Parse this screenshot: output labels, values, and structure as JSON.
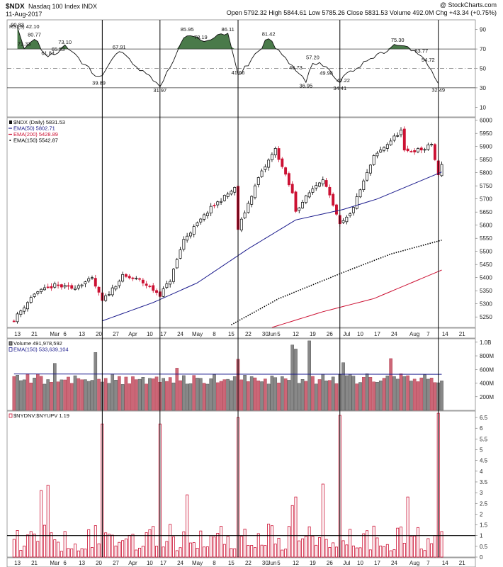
{
  "header": {
    "symbol": "$NDX",
    "name": "Nasdaq 100 Index INDX",
    "date": "11-Aug-2017",
    "ohlc": "Open 5792.32 High 5844.61 Low 5785.26 Close 5831.53 Volume 492.0M Chg +43.34 (+0.75%)",
    "watermark": "@ StockCharts.com"
  },
  "colors": {
    "up": "#000000",
    "down": "#cc1133",
    "ema50": "#1a1a8c",
    "ema200": "#cc1133",
    "ema150": "#000000",
    "rsi_fill": "#4a7a4a",
    "vol_down": "#cc6677",
    "vol_up": "#888888"
  },
  "chart_data": [
    {
      "type": "line",
      "title": "RSI(9) 42.10",
      "legend": "RSI(9) 42.10",
      "ylim": [
        0,
        100
      ],
      "yticks": [
        10,
        30,
        50,
        70,
        90
      ],
      "reference_lines": [
        30,
        50,
        70
      ],
      "annotations": [
        {
          "date": "2017-02-13",
          "value": 90.83,
          "label": "90.83"
        },
        {
          "date": "2017-02-21",
          "value": 80.77,
          "label": "80.77"
        },
        {
          "date": "2017-02-15",
          "value": 71.33,
          "label": "71.33"
        },
        {
          "date": "2017-02-27",
          "value": 61.84,
          "label": "61.84"
        },
        {
          "date": "2017-03-02",
          "value": 65.53,
          "label": "65.53"
        },
        {
          "date": "2017-03-06",
          "value": 73.1,
          "label": "73.10"
        },
        {
          "date": "2017-03-20",
          "value": 39.89,
          "label": "39.89"
        },
        {
          "date": "2017-03-28",
          "value": 67.91,
          "label": "67.91"
        },
        {
          "date": "2017-04-13",
          "value": 31.97,
          "label": "31.97"
        },
        {
          "date": "2017-04-26",
          "value": 85.95,
          "label": "85.95"
        },
        {
          "date": "2017-05-02",
          "value": 78.19,
          "label": "78.19"
        },
        {
          "date": "2017-05-12",
          "value": 86.11,
          "label": "86.11"
        },
        {
          "date": "2017-05-17",
          "value": 41.66,
          "label": "41.66"
        },
        {
          "date": "2017-05-31",
          "value": 81.42,
          "label": "81.42"
        },
        {
          "date": "2017-06-12",
          "value": 46.73,
          "label": "46.73"
        },
        {
          "date": "2017-06-15",
          "value": 36.95,
          "label": "36.95"
        },
        {
          "date": "2017-06-19",
          "value": 57.2,
          "label": "57.20"
        },
        {
          "date": "2017-06-23",
          "value": 49.98,
          "label": "49.98"
        },
        {
          "date": "2017-06-29",
          "value": 34.41,
          "label": "34.41"
        },
        {
          "date": "2017-06-30",
          "value": 42.22,
          "label": "42.22"
        },
        {
          "date": "2017-07-25",
          "value": 75.3,
          "label": "75.30"
        },
        {
          "date": "2017-08-03",
          "value": 63.77,
          "label": "63.77"
        },
        {
          "date": "2017-08-07",
          "value": 54.72,
          "label": "54.72"
        },
        {
          "date": "2017-08-10",
          "value": 32.49,
          "label": "32.49"
        }
      ]
    },
    {
      "type": "candlestick",
      "title": "$NDX (Daily) 5831.53",
      "legend": [
        {
          "name": "$NDX (Daily) 5831.53",
          "color": "#111111"
        },
        {
          "name": "EMA(50) 5802.71",
          "color": "#1a1a8c"
        },
        {
          "name": "EMA(200) 5428.89",
          "color": "#cc1133"
        },
        {
          "name": "EMA(150) 5542.87",
          "color": "#000000"
        }
      ],
      "ylim": [
        5210,
        6010
      ],
      "yticks": [
        5250,
        5300,
        5350,
        5400,
        5450,
        5500,
        5550,
        5600,
        5650,
        5700,
        5750,
        5800,
        5850,
        5900,
        5950,
        6000
      ],
      "anchors": [
        {
          "date": "2017-02-10",
          "close": 5240
        },
        {
          "date": "2017-02-21",
          "close": 5340
        },
        {
          "date": "2017-03-01",
          "close": 5370
        },
        {
          "date": "2017-03-08",
          "close": 5360
        },
        {
          "date": "2017-03-16",
          "close": 5395
        },
        {
          "date": "2017-03-21",
          "close": 5310
        },
        {
          "date": "2017-03-29",
          "close": 5405
        },
        {
          "date": "2017-04-05",
          "close": 5390
        },
        {
          "date": "2017-04-13",
          "close": 5335
        },
        {
          "date": "2017-04-19",
          "close": 5390
        },
        {
          "date": "2017-04-25",
          "close": 5545
        },
        {
          "date": "2017-05-05",
          "close": 5665
        },
        {
          "date": "2017-05-16",
          "close": 5740
        },
        {
          "date": "2017-05-17",
          "close": 5585
        },
        {
          "date": "2017-05-25",
          "close": 5780
        },
        {
          "date": "2017-06-02",
          "close": 5890
        },
        {
          "date": "2017-06-09",
          "close": 5720
        },
        {
          "date": "2017-06-12",
          "close": 5655
        },
        {
          "date": "2017-06-19",
          "close": 5740
        },
        {
          "date": "2017-06-22",
          "close": 5780
        },
        {
          "date": "2017-06-29",
          "close": 5600
        },
        {
          "date": "2017-07-05",
          "close": 5640
        },
        {
          "date": "2017-07-14",
          "close": 5860
        },
        {
          "date": "2017-07-26",
          "close": 5960
        },
        {
          "date": "2017-07-27",
          "close": 5880
        },
        {
          "date": "2017-08-04",
          "close": 5890
        },
        {
          "date": "2017-08-08",
          "close": 5910
        },
        {
          "date": "2017-08-10",
          "close": 5788
        },
        {
          "date": "2017-08-11",
          "close": 5831.53
        }
      ],
      "ema50_points": [
        {
          "date": "2017-03-21",
          "value": 5235
        },
        {
          "date": "2017-04-11",
          "value": 5305
        },
        {
          "date": "2017-05-01",
          "value": 5380
        },
        {
          "date": "2017-05-22",
          "value": 5510
        },
        {
          "date": "2017-06-12",
          "value": 5620
        },
        {
          "date": "2017-06-30",
          "value": 5660
        },
        {
          "date": "2017-07-17",
          "value": 5700
        },
        {
          "date": "2017-08-11",
          "value": 5802.71
        }
      ],
      "ema150_points": [
        {
          "date": "2017-05-15",
          "value": 5220
        },
        {
          "date": "2017-06-05",
          "value": 5320
        },
        {
          "date": "2017-06-30",
          "value": 5420
        },
        {
          "date": "2017-07-21",
          "value": 5490
        },
        {
          "date": "2017-08-11",
          "value": 5542.87
        }
      ],
      "ema200_points": [
        {
          "date": "2017-06-01",
          "value": 5210
        },
        {
          "date": "2017-06-22",
          "value": 5270
        },
        {
          "date": "2017-07-14",
          "value": 5320
        },
        {
          "date": "2017-08-11",
          "value": 5428.89
        }
      ]
    },
    {
      "type": "bar",
      "title": "Volume 491,978,592",
      "legend": [
        {
          "name": "Volume 491,978,592",
          "color": "#111111"
        },
        {
          "name": "EMA(150) 533,639,104",
          "color": "#1a1a8c"
        }
      ],
      "ylim": [
        0,
        1050
      ],
      "yticks": [
        200,
        400,
        600,
        800,
        1000
      ],
      "ytick_labels": [
        "200M",
        "400M",
        "600M",
        "800M",
        "1.0B"
      ],
      "ema150_value": 533.6,
      "spikes": [
        {
          "date": "2017-03-01",
          "value": 690
        },
        {
          "date": "2017-03-17",
          "value": 850
        },
        {
          "date": "2017-04-21",
          "value": 620
        },
        {
          "date": "2017-05-17",
          "value": 750
        },
        {
          "date": "2017-06-09",
          "value": 960
        },
        {
          "date": "2017-06-12",
          "value": 900
        },
        {
          "date": "2017-06-16",
          "value": 1020
        },
        {
          "date": "2017-06-30",
          "value": 700
        },
        {
          "date": "2017-07-21",
          "value": 760
        }
      ]
    },
    {
      "type": "bar",
      "title": "$NYDNV:$NYUPV 1.19",
      "legend": "$NYDNV:$NYUPV 1.19",
      "ylim": [
        0,
        6.8
      ],
      "yticks": [
        0.0,
        0.5,
        1.0,
        1.5,
        2.0,
        2.5,
        3.0,
        3.5,
        4.0,
        4.5,
        5.0,
        5.5,
        6.0,
        6.5
      ],
      "reference_lines": [
        1.0
      ],
      "spikes": [
        {
          "date": "2017-02-23",
          "value": 3.1
        },
        {
          "date": "2017-02-27",
          "value": 3.35
        },
        {
          "date": "2017-03-21",
          "value": 6.2
        },
        {
          "date": "2017-04-13",
          "value": 6.2
        },
        {
          "date": "2017-04-26",
          "value": 2.9
        },
        {
          "date": "2017-05-17",
          "value": 6.5
        },
        {
          "date": "2017-06-09",
          "value": 2.4
        },
        {
          "date": "2017-06-12",
          "value": 2.8
        },
        {
          "date": "2017-06-22",
          "value": 3.4
        },
        {
          "date": "2017-06-29",
          "value": 6.6
        },
        {
          "date": "2017-07-28",
          "value": 2.8
        },
        {
          "date": "2017-08-10",
          "value": 6.7
        },
        {
          "date": "2017-08-11",
          "value": 1.19
        }
      ]
    }
  ],
  "x_axis": {
    "ticks": [
      {
        "date": "2017-02-13",
        "label": "13"
      },
      {
        "date": "2017-02-21",
        "label": "21"
      },
      {
        "date": "2017-03-01",
        "label": "Mar"
      },
      {
        "date": "2017-03-06",
        "label": "6"
      },
      {
        "date": "2017-03-13",
        "label": "13"
      },
      {
        "date": "2017-03-20",
        "label": "20"
      },
      {
        "date": "2017-03-27",
        "label": "27"
      },
      {
        "date": "2017-04-03",
        "label": "Apr"
      },
      {
        "date": "2017-04-10",
        "label": "10"
      },
      {
        "date": "2017-04-17",
        "label": "17"
      },
      {
        "date": "2017-04-24",
        "label": "24"
      },
      {
        "date": "2017-05-01",
        "label": "May"
      },
      {
        "date": "2017-05-08",
        "label": "8"
      },
      {
        "date": "2017-05-15",
        "label": "15"
      },
      {
        "date": "2017-05-22",
        "label": "22"
      },
      {
        "date": "2017-05-30",
        "label": "30"
      },
      {
        "date": "2017-06-01",
        "label": "Jun"
      },
      {
        "date": "2017-06-05",
        "label": "5"
      },
      {
        "date": "2017-06-12",
        "label": "12"
      },
      {
        "date": "2017-06-19",
        "label": "19"
      },
      {
        "date": "2017-06-26",
        "label": "26"
      },
      {
        "date": "2017-07-03",
        "label": "Jul"
      },
      {
        "date": "2017-07-10",
        "label": "10"
      },
      {
        "date": "2017-07-17",
        "label": "17"
      },
      {
        "date": "2017-07-24",
        "label": "24"
      },
      {
        "date": "2017-08-01",
        "label": "Aug"
      },
      {
        "date": "2017-08-07",
        "label": "7"
      },
      {
        "date": "2017-08-14",
        "label": "14"
      },
      {
        "date": "2017-08-21",
        "label": "21"
      }
    ],
    "vertical_markers": [
      "2017-03-21",
      "2017-04-13",
      "2017-05-17",
      "2017-06-29",
      "2017-08-10"
    ]
  }
}
